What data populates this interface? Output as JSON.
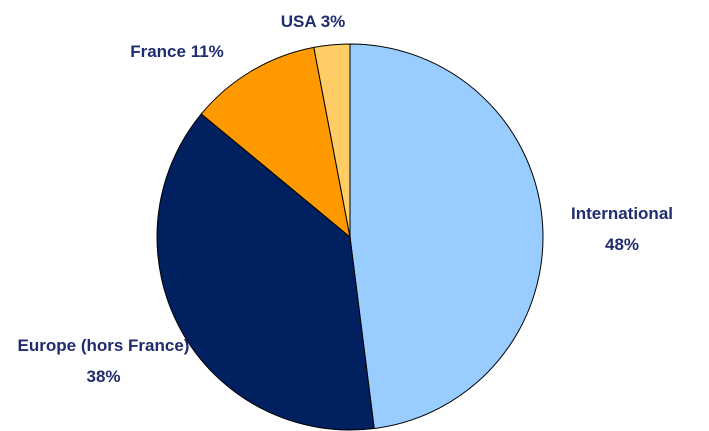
{
  "chart_data": {
    "type": "pie",
    "categories": [
      "International",
      "Europe (hors France)",
      "France",
      "USA"
    ],
    "values": [
      48,
      38,
      11,
      3
    ],
    "value_labels": [
      "48%",
      "38%",
      "11%",
      "3%"
    ],
    "colors": [
      "#99ccff",
      "#002060",
      "#ff9900",
      "#ffcc66"
    ]
  }
}
